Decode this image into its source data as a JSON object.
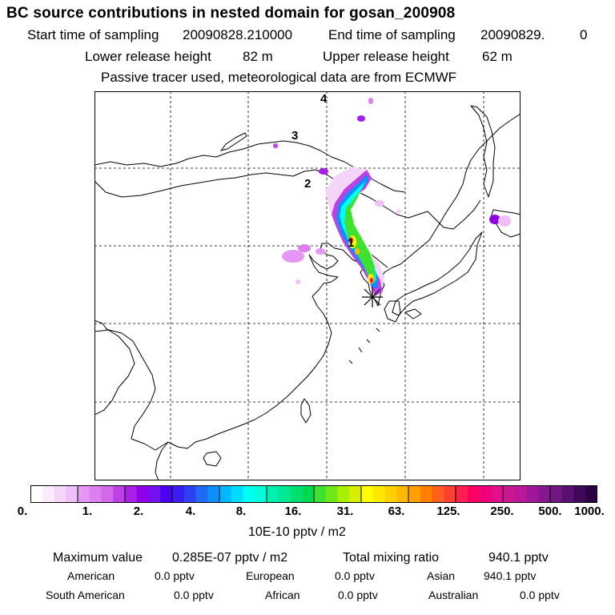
{
  "header": {
    "title": "BC  source contributions in nested domain for gosan_200908",
    "start_label": "Start time of sampling",
    "start_value": "20090828.210000",
    "end_label": "End time of sampling",
    "end_value": "20090829.",
    "end_value2": "0",
    "lower_label": "Lower release height",
    "lower_value": "82 m",
    "upper_label": "Upper release height",
    "upper_value": "62 m",
    "tracer_note": "Passive tracer used, meteorological data are from ECMWF"
  },
  "map": {
    "day_markers": [
      "4",
      "3",
      "2",
      "1"
    ],
    "receptor_symbol": "star",
    "colors": {
      "frame": "#000000",
      "coast": "#000000",
      "grid": "#000000"
    }
  },
  "colorbar": {
    "labels": [
      "0.",
      "1.",
      "2.",
      "4.",
      "8.",
      "16.",
      "31.",
      "63.",
      "125.",
      "250.",
      "500.",
      "1000."
    ],
    "unit": "10E-10 pptv / m2",
    "colors": [
      "#ffffff",
      "#fbecfd",
      "#f5d6fa",
      "#eec0f7",
      "#e597f3",
      "#dd7ff0",
      "#d468ed",
      "#c040e8",
      "#a91fe6",
      "#8e00ea",
      "#7510f0",
      "#4b00f0",
      "#3a1cf5",
      "#2d40f5",
      "#1f6bf7",
      "#0f8ff9",
      "#00b8ff",
      "#00dcff",
      "#00fff0",
      "#00ffd8",
      "#00f0b0",
      "#00e890",
      "#00e070",
      "#00d850",
      "#40e030",
      "#70e818",
      "#a8f000",
      "#d8f000",
      "#ffff00",
      "#ffe800",
      "#ffd000",
      "#ffb800",
      "#ffa000",
      "#ff8000",
      "#ff6020",
      "#ff4030",
      "#ff2050",
      "#ff0066",
      "#f00078",
      "#e0108a",
      "#cc1890",
      "#b8189a",
      "#a0189a",
      "#881890",
      "#701882",
      "#581070",
      "#400858",
      "#280440"
    ]
  },
  "stats": {
    "max_label": "Maximum value",
    "max_value": "0.285E-07 pptv / m2",
    "total_label": "Total mixing ratio",
    "total_value": "940.1 pptv",
    "regions": [
      {
        "name": "American",
        "value": "0.0 pptv"
      },
      {
        "name": "European",
        "value": "0.0 pptv"
      },
      {
        "name": "Asian",
        "value": "940.1 pptv"
      },
      {
        "name": "South American",
        "value": "0.0 pptv"
      },
      {
        "name": "African",
        "value": "0.0 pptv"
      },
      {
        "name": "Australian",
        "value": "0.0 pptv"
      }
    ]
  }
}
